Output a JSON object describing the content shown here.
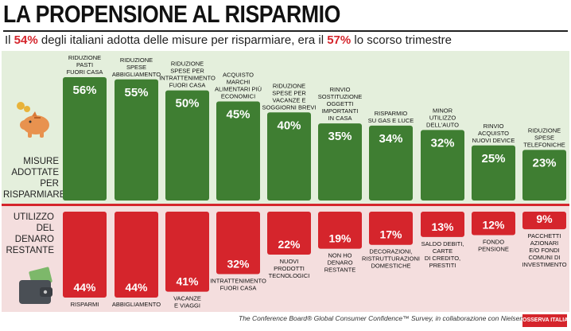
{
  "header": {
    "title": "LA PROPENSIONE AL RISPARMIO",
    "subtitle_pre": "Il ",
    "subtitle_hl1": "54%",
    "subtitle_mid": " degli italiani adotta delle misure per risparmiare, era il ",
    "subtitle_hl2": "57%",
    "subtitle_post": " lo scorso trimestre"
  },
  "footer": {
    "source": "The Conference Board® Global Consumer Confidence™ Survey, in collaborazione con Nielsen",
    "logo": "OSSERVA ITALIA"
  },
  "colors": {
    "green": "#3f7e32",
    "red": "#d5252c",
    "top_bg": "#e4efdc",
    "bottom_bg": "#f4dede"
  },
  "icons": [
    "piggy-bank-icon",
    "wallet-icon"
  ],
  "chart_data": [
    {
      "type": "bar",
      "label": [
        "MISURE",
        "ADOTTATE PER",
        "RISPARMIARE"
      ],
      "categories": [
        [
          "RIDUZIONE",
          "PASTI",
          "FUORI CASA"
        ],
        [
          "RIDUZIONE",
          "SPESE",
          "ABBIGLIAMENTO"
        ],
        [
          "RIDUZIONE",
          "SPESE PER",
          "INTRATTENIMENTO",
          "FUORI CASA"
        ],
        [
          "ACQUISTO",
          "MARCHI",
          "ALIMENTARI PIÙ",
          "ECONOMICI"
        ],
        [
          "RIDUZIONE",
          "SPESE PER",
          "VACANZE E",
          "SOGGIORNI BREVI"
        ],
        [
          "RINVIO",
          "SOSTITUZIONE",
          "OGGETTI",
          "IMPORTANTI",
          "IN CASA"
        ],
        [
          "RISPARMIO",
          "SU GAS E LUCE"
        ],
        [
          "MINOR",
          "UTILIZZO",
          "DELL'AUTO"
        ],
        [
          "RINVIO",
          "ACQUISTO",
          "NUOVI DEVICE"
        ],
        [
          "RIDUZIONE",
          "SPESE",
          "TELEFONICHE"
        ]
      ],
      "values": [
        56,
        55,
        50,
        45,
        40,
        35,
        34,
        32,
        25,
        23
      ],
      "value_labels": [
        "56%",
        "55%",
        "50%",
        "45%",
        "40%",
        "35%",
        "34%",
        "32%",
        "25%",
        "23%"
      ]
    },
    {
      "type": "bar",
      "label": [
        "UTILIZZO",
        "DEL DENARO",
        "RESTANTE"
      ],
      "categories": [
        [
          "RISPARMI"
        ],
        [
          "ABBIGLIAMENTO"
        ],
        [
          "VACANZE",
          "E VIAGGI"
        ],
        [
          "INTRATTENIMENTO",
          "FUORI CASA"
        ],
        [
          "NUOVI",
          "PRODOTTI",
          "TECNOLOGICI"
        ],
        [
          "NON HO",
          "DENARO",
          "RESTANTE"
        ],
        [
          "DECORAZIONI,",
          "RISTRUTTURAZIONI",
          "DOMESTICHE"
        ],
        [
          "SALDO DEBITI,",
          "CARTE",
          "DI CREDITO,",
          "PRESTITI"
        ],
        [
          "FONDO",
          "PENSIONE"
        ],
        [
          "PACCHETTI",
          "AZIONARI",
          "E/O FONDI",
          "COMUNI DI",
          "INVESTIMENTO"
        ]
      ],
      "values": [
        44,
        44,
        41,
        32,
        22,
        19,
        17,
        13,
        12,
        9
      ],
      "value_labels": [
        "44%",
        "44%",
        "41%",
        "32%",
        "22%",
        "19%",
        "17%",
        "13%",
        "12%",
        "9%"
      ]
    }
  ]
}
